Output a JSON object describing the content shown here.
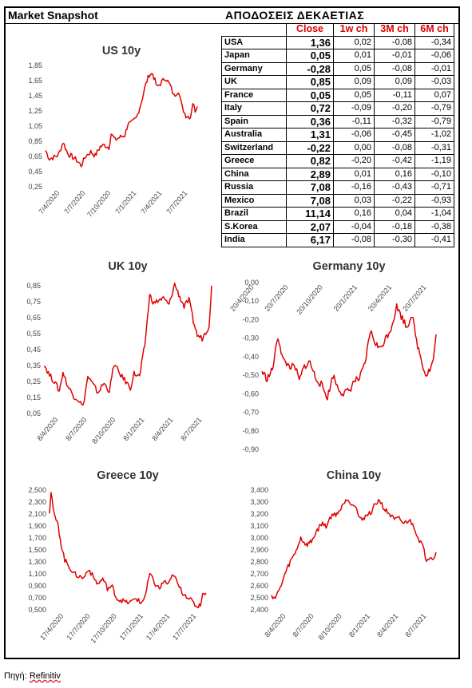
{
  "header": {
    "snapshot_title": "Market Snapshot",
    "table_title": "ΑΠΟΔΟΣΕΙΣ ΔΕΚΑΕΤΙΑΣ"
  },
  "table": {
    "columns": [
      "Close",
      "1w ch",
      "3M ch",
      "6M ch"
    ],
    "rows": [
      {
        "country": "USA",
        "close": "1,36",
        "w1": "0,02",
        "m3": "-0,08",
        "m6": "-0,34"
      },
      {
        "country": "Japan",
        "close": "0,05",
        "w1": "0,01",
        "m3": "-0,01",
        "m6": "-0,06"
      },
      {
        "country": "Germany",
        "close": "-0,28",
        "w1": "0,05",
        "m3": "-0,08",
        "m6": "-0,01"
      },
      {
        "country": "UK",
        "close": "0,85",
        "w1": "0,09",
        "m3": "0,09",
        "m6": "-0,03"
      },
      {
        "country": "France",
        "close": "0,05",
        "w1": "0,05",
        "m3": "-0,11",
        "m6": "0,07"
      },
      {
        "country": "Italy",
        "close": "0,72",
        "w1": "-0,09",
        "m3": "-0,20",
        "m6": "-0,79"
      },
      {
        "country": "Spain",
        "close": "0,36",
        "w1": "-0,11",
        "m3": "-0,32",
        "m6": "-0,79"
      },
      {
        "country": "Australia",
        "close": "1,31",
        "w1": "-0,06",
        "m3": "-0,45",
        "m6": "-1,02"
      },
      {
        "country": "Switzerland",
        "close": "-0,22",
        "w1": "0,00",
        "m3": "-0,08",
        "m6": "-0,31"
      },
      {
        "country": "Greece",
        "close": "0,82",
        "w1": "-0,20",
        "m3": "-0,42",
        "m6": "-1,19"
      },
      {
        "country": "China",
        "close": "2,89",
        "w1": "0,01",
        "m3": "0,16",
        "m6": "-0,10"
      },
      {
        "country": "Russia",
        "close": "7,08",
        "w1": "-0,16",
        "m3": "-0,43",
        "m6": "-0,71"
      },
      {
        "country": "Mexico",
        "close": "7,08",
        "w1": "0,03",
        "m3": "-0,22",
        "m6": "-0,93"
      },
      {
        "country": "Brazil",
        "close": "11,14",
        "w1": "0,16",
        "m3": "0,04",
        "m6": "-1,04"
      },
      {
        "country": "S.Korea",
        "close": "2,07",
        "w1": "-0,04",
        "m3": "-0,18",
        "m6": "-0,38"
      },
      {
        "country": "India",
        "close": "6,17",
        "w1": "-0,08",
        "m3": "-0,30",
        "m6": "-0,41"
      }
    ]
  },
  "source": {
    "label": "Πηγή:",
    "name": "Refinitiv"
  },
  "line_color": "#e00000",
  "chart_data": [
    {
      "id": "us",
      "type": "line",
      "title": "US 10y",
      "ylim": [
        0.25,
        1.85
      ],
      "yticks": [
        "0,25",
        "0,45",
        "0,65",
        "0,85",
        "1,05",
        "1,25",
        "1,45",
        "1,65",
        "1,85"
      ],
      "xticks": [
        "7/4/2020",
        "7/7/2020",
        "7/10/2020",
        "7/1/2021",
        "7/4/2021",
        "7/7/2021"
      ],
      "x_range": [
        "2020-04-07",
        "2021-08-27"
      ],
      "series": [
        {
          "points": [
            [
              "2020-04-07",
              0.73
            ],
            [
              "2020-04-20",
              0.62
            ],
            [
              "2020-05-05",
              0.64
            ],
            [
              "2020-05-20",
              0.67
            ],
            [
              "2020-06-05",
              0.84
            ],
            [
              "2020-06-20",
              0.69
            ],
            [
              "2020-07-07",
              0.64
            ],
            [
              "2020-07-20",
              0.6
            ],
            [
              "2020-08-04",
              0.53
            ],
            [
              "2020-08-20",
              0.66
            ],
            [
              "2020-09-05",
              0.71
            ],
            [
              "2020-09-20",
              0.66
            ],
            [
              "2020-10-07",
              0.78
            ],
            [
              "2020-10-20",
              0.8
            ],
            [
              "2020-11-05",
              0.77
            ],
            [
              "2020-11-12",
              0.95
            ],
            [
              "2020-11-25",
              0.87
            ],
            [
              "2020-12-10",
              0.9
            ],
            [
              "2020-12-28",
              0.93
            ],
            [
              "2021-01-07",
              1.08
            ],
            [
              "2021-01-20",
              1.09
            ],
            [
              "2021-02-05",
              1.16
            ],
            [
              "2021-02-20",
              1.35
            ],
            [
              "2021-03-05",
              1.56
            ],
            [
              "2021-03-19",
              1.73
            ],
            [
              "2021-03-31",
              1.74
            ],
            [
              "2021-04-15",
              1.56
            ],
            [
              "2021-04-30",
              1.63
            ],
            [
              "2021-05-13",
              1.69
            ],
            [
              "2021-05-28",
              1.59
            ],
            [
              "2021-06-10",
              1.45
            ],
            [
              "2021-06-25",
              1.52
            ],
            [
              "2021-07-08",
              1.29
            ],
            [
              "2021-07-20",
              1.19
            ],
            [
              "2021-08-04",
              1.17
            ],
            [
              "2021-08-12",
              1.36
            ],
            [
              "2021-08-20",
              1.26
            ],
            [
              "2021-08-27",
              1.31
            ]
          ]
        }
      ]
    },
    {
      "id": "uk",
      "type": "line",
      "title": "UK 10y",
      "ylim": [
        0.05,
        0.85
      ],
      "yticks": [
        "0,05",
        "0,15",
        "0,25",
        "0,35",
        "0,45",
        "0,55",
        "0,65",
        "0,75",
        "0,85"
      ],
      "xticks": [
        "8/4/2020",
        "8/7/2020",
        "8/10/2020",
        "8/1/2021",
        "8/4/2021",
        "8/7/2021"
      ],
      "x_range": [
        "2020-04-08",
        "2021-09-02"
      ],
      "series": [
        {
          "points": [
            [
              "2020-04-08",
              0.36
            ],
            [
              "2020-04-25",
              0.29
            ],
            [
              "2020-05-10",
              0.25
            ],
            [
              "2020-05-25",
              0.19
            ],
            [
              "2020-06-05",
              0.31
            ],
            [
              "2020-06-20",
              0.22
            ],
            [
              "2020-07-08",
              0.16
            ],
            [
              "2020-07-25",
              0.13
            ],
            [
              "2020-08-05",
              0.09
            ],
            [
              "2020-08-20",
              0.28
            ],
            [
              "2020-09-05",
              0.23
            ],
            [
              "2020-09-20",
              0.18
            ],
            [
              "2020-10-08",
              0.24
            ],
            [
              "2020-10-25",
              0.19
            ],
            [
              "2020-11-08",
              0.36
            ],
            [
              "2020-11-25",
              0.3
            ],
            [
              "2020-12-10",
              0.26
            ],
            [
              "2020-12-28",
              0.21
            ],
            [
              "2021-01-08",
              0.3
            ],
            [
              "2021-01-25",
              0.28
            ],
            [
              "2021-02-10",
              0.48
            ],
            [
              "2021-02-25",
              0.79
            ],
            [
              "2021-03-10",
              0.74
            ],
            [
              "2021-03-25",
              0.76
            ],
            [
              "2021-04-08",
              0.77
            ],
            [
              "2021-04-25",
              0.73
            ],
            [
              "2021-05-12",
              0.86
            ],
            [
              "2021-05-28",
              0.78
            ],
            [
              "2021-06-10",
              0.72
            ],
            [
              "2021-06-25",
              0.76
            ],
            [
              "2021-07-08",
              0.63
            ],
            [
              "2021-07-20",
              0.54
            ],
            [
              "2021-08-04",
              0.52
            ],
            [
              "2021-08-15",
              0.56
            ],
            [
              "2021-08-25",
              0.6
            ],
            [
              "2021-09-02",
              0.85
            ]
          ]
        }
      ]
    },
    {
      "id": "germany",
      "type": "line",
      "title": "Germany 10y",
      "ylim": [
        -0.9,
        0.0
      ],
      "yticks": [
        "0,00",
        "-0,10",
        "-0,20",
        "-0,30",
        "-0,40",
        "-0,50",
        "-0,60",
        "-0,70",
        "-0,80",
        "-0,90"
      ],
      "xticks": [
        "20/4/2020",
        "20/7/2020",
        "20/10/2020",
        "20/1/2021",
        "20/4/2021",
        "20/7/2021"
      ],
      "x_range": [
        "2020-04-20",
        "2021-09-02"
      ],
      "series": [
        {
          "points": [
            [
              "2020-04-20",
              -0.48
            ],
            [
              "2020-05-05",
              -0.52
            ],
            [
              "2020-05-20",
              -0.47
            ],
            [
              "2020-06-05",
              -0.29
            ],
            [
              "2020-06-20",
              -0.42
            ],
            [
              "2020-07-07",
              -0.45
            ],
            [
              "2020-07-25",
              -0.46
            ],
            [
              "2020-08-05",
              -0.53
            ],
            [
              "2020-08-20",
              -0.45
            ],
            [
              "2020-09-05",
              -0.43
            ],
            [
              "2020-09-20",
              -0.51
            ],
            [
              "2020-10-07",
              -0.55
            ],
            [
              "2020-10-25",
              -0.62
            ],
            [
              "2020-11-10",
              -0.5
            ],
            [
              "2020-11-25",
              -0.57
            ],
            [
              "2020-12-10",
              -0.6
            ],
            [
              "2020-12-28",
              -0.58
            ],
            [
              "2021-01-10",
              -0.53
            ],
            [
              "2021-01-25",
              -0.52
            ],
            [
              "2021-02-10",
              -0.44
            ],
            [
              "2021-02-25",
              -0.26
            ],
            [
              "2021-03-10",
              -0.32
            ],
            [
              "2021-03-25",
              -0.36
            ],
            [
              "2021-04-10",
              -0.3
            ],
            [
              "2021-04-25",
              -0.25
            ],
            [
              "2021-05-12",
              -0.13
            ],
            [
              "2021-05-25",
              -0.18
            ],
            [
              "2021-06-10",
              -0.24
            ],
            [
              "2021-06-25",
              -0.17
            ],
            [
              "2021-07-08",
              -0.32
            ],
            [
              "2021-07-20",
              -0.4
            ],
            [
              "2021-08-03",
              -0.5
            ],
            [
              "2021-08-15",
              -0.47
            ],
            [
              "2021-08-25",
              -0.42
            ],
            [
              "2021-09-02",
              -0.28
            ]
          ]
        }
      ]
    },
    {
      "id": "greece",
      "type": "line",
      "title": "Greece 10y",
      "ylim": [
        0.5,
        2.5
      ],
      "yticks": [
        "0,500",
        "0,700",
        "0,900",
        "1,100",
        "1,300",
        "1,500",
        "1,700",
        "1,900",
        "2,100",
        "2,300",
        "2,500"
      ],
      "xticks": [
        "17/4/2020",
        "17/7/2020",
        "17/10/2020",
        "17/1/2021",
        "17/4/2021",
        "17/7/2021"
      ],
      "x_range": [
        "2020-04-17",
        "2021-09-02"
      ],
      "series": [
        {
          "points": [
            [
              "2020-04-17",
              2.15
            ],
            [
              "2020-04-22",
              2.49
            ],
            [
              "2020-05-02",
              2.08
            ],
            [
              "2020-05-15",
              1.9
            ],
            [
              "2020-05-25",
              1.58
            ],
            [
              "2020-06-05",
              1.33
            ],
            [
              "2020-06-20",
              1.22
            ],
            [
              "2020-07-05",
              1.1
            ],
            [
              "2020-07-20",
              1.06
            ],
            [
              "2020-08-05",
              1.03
            ],
            [
              "2020-08-20",
              1.19
            ],
            [
              "2020-09-05",
              1.04
            ],
            [
              "2020-09-20",
              0.93
            ],
            [
              "2020-10-05",
              1.02
            ],
            [
              "2020-10-20",
              0.86
            ],
            [
              "2020-11-05",
              0.88
            ],
            [
              "2020-11-20",
              0.68
            ],
            [
              "2020-12-05",
              0.66
            ],
            [
              "2020-12-20",
              0.62
            ],
            [
              "2021-01-05",
              0.63
            ],
            [
              "2021-01-20",
              0.7
            ],
            [
              "2021-02-05",
              0.6
            ],
            [
              "2021-02-20",
              0.76
            ],
            [
              "2021-03-05",
              1.1
            ],
            [
              "2021-03-20",
              0.95
            ],
            [
              "2021-04-05",
              0.85
            ],
            [
              "2021-04-20",
              0.98
            ],
            [
              "2021-05-05",
              0.92
            ],
            [
              "2021-05-20",
              1.1
            ],
            [
              "2021-06-05",
              0.9
            ],
            [
              "2021-06-20",
              0.78
            ],
            [
              "2021-07-05",
              0.72
            ],
            [
              "2021-07-20",
              0.63
            ],
            [
              "2021-08-05",
              0.55
            ],
            [
              "2021-08-15",
              0.6
            ],
            [
              "2021-08-25",
              0.8
            ],
            [
              "2021-09-02",
              0.78
            ]
          ]
        }
      ]
    },
    {
      "id": "china",
      "type": "line",
      "title": "China 10y",
      "ylim": [
        2.4,
        3.4
      ],
      "yticks": [
        "2,400",
        "2,500",
        "2,600",
        "2,700",
        "2,800",
        "2,900",
        "3,000",
        "3,100",
        "3,200",
        "3,300",
        "3,400"
      ],
      "xticks": [
        "8/4/2020",
        "8/7/2020",
        "8/10/2020",
        "8/1/2021",
        "8/4/2021",
        "8/7/2021"
      ],
      "x_range": [
        "2020-04-08",
        "2021-09-02"
      ],
      "series": [
        {
          "points": [
            [
              "2020-04-08",
              2.52
            ],
            [
              "2020-04-20",
              2.5
            ],
            [
              "2020-05-05",
              2.58
            ],
            [
              "2020-05-20",
              2.7
            ],
            [
              "2020-06-05",
              2.8
            ],
            [
              "2020-06-20",
              2.87
            ],
            [
              "2020-07-08",
              3.0
            ],
            [
              "2020-07-25",
              2.94
            ],
            [
              "2020-08-10",
              2.97
            ],
            [
              "2020-08-25",
              3.05
            ],
            [
              "2020-09-10",
              3.12
            ],
            [
              "2020-09-25",
              3.1
            ],
            [
              "2020-10-10",
              3.18
            ],
            [
              "2020-10-25",
              3.2
            ],
            [
              "2020-11-10",
              3.24
            ],
            [
              "2020-11-25",
              3.33
            ],
            [
              "2020-12-10",
              3.3
            ],
            [
              "2020-12-25",
              3.27
            ],
            [
              "2021-01-08",
              3.15
            ],
            [
              "2021-01-25",
              3.18
            ],
            [
              "2021-02-10",
              3.21
            ],
            [
              "2021-02-25",
              3.28
            ],
            [
              "2021-03-10",
              3.32
            ],
            [
              "2021-03-25",
              3.24
            ],
            [
              "2021-04-10",
              3.2
            ],
            [
              "2021-04-25",
              3.15
            ],
            [
              "2021-05-10",
              3.16
            ],
            [
              "2021-05-25",
              3.12
            ],
            [
              "2021-06-10",
              3.15
            ],
            [
              "2021-06-25",
              3.1
            ],
            [
              "2021-07-08",
              3.0
            ],
            [
              "2021-07-20",
              2.95
            ],
            [
              "2021-08-03",
              2.82
            ],
            [
              "2021-08-15",
              2.85
            ],
            [
              "2021-08-25",
              2.83
            ],
            [
              "2021-09-02",
              2.88
            ]
          ]
        }
      ]
    }
  ]
}
